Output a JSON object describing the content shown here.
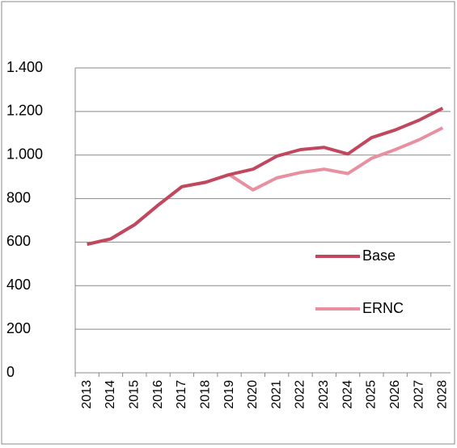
{
  "chart_data": {
    "type": "line",
    "categories": [
      "2013",
      "2014",
      "2015",
      "2016",
      "2017",
      "2018",
      "2019",
      "2020",
      "2021",
      "2022",
      "2023",
      "2024",
      "2025",
      "2026",
      "2027",
      "2028"
    ],
    "series": [
      {
        "name": "Base",
        "color": "#c0475e",
        "values": [
          590,
          615,
          680,
          770,
          855,
          875,
          910,
          935,
          995,
          1025,
          1035,
          1005,
          1080,
          1115,
          1160,
          1215
        ]
      },
      {
        "name": "ERNC",
        "color": "#e8909f",
        "values": [
          590,
          615,
          680,
          770,
          855,
          875,
          910,
          840,
          895,
          920,
          935,
          915,
          985,
          1025,
          1070,
          1125
        ]
      }
    ],
    "ylim": [
      0,
      1400
    ],
    "yticks": [
      0,
      200,
      400,
      600,
      800,
      {
        "value": 1000,
        "label": "1.000"
      },
      {
        "value": 1200,
        "label": "1.200"
      },
      {
        "value": 1400,
        "label": "1.400"
      }
    ],
    "grid": true
  }
}
